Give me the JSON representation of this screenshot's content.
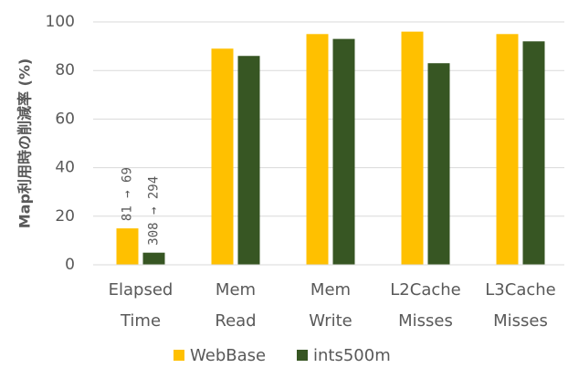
{
  "chart_data": {
    "type": "bar",
    "y_label": "Map利用時の削減率 (%)",
    "categories": [
      [
        "Elapsed",
        "Time"
      ],
      [
        "Mem",
        "Read"
      ],
      [
        "Mem",
        "Write"
      ],
      [
        "L2Cache",
        "Misses"
      ],
      [
        "L3Cache",
        "Misses"
      ]
    ],
    "series": [
      {
        "name": "WebBase",
        "color": "#ffc000",
        "values": [
          15,
          89,
          95,
          96,
          95
        ]
      },
      {
        "name": "ints500m",
        "color": "#375623",
        "values": [
          5,
          86,
          93,
          83,
          92
        ]
      }
    ],
    "annotations": [
      "81 → 69",
      "308 → 294"
    ],
    "ylim": [
      0,
      100
    ],
    "yticks": [
      0,
      20,
      40,
      60,
      80,
      100
    ],
    "grid": true
  }
}
